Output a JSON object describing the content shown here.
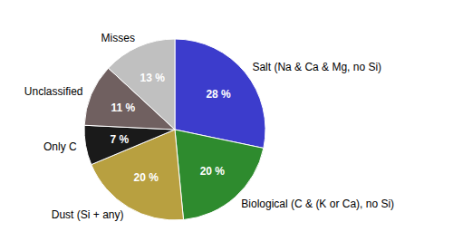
{
  "chart_data": {
    "type": "pie",
    "categories": [
      "Salt (Na & Ca & Mg, no Si)",
      "Biological (C & (K or Ca), no Si)",
      "Dust (Si + any)",
      "Only C",
      "Unclassified",
      "Misses"
    ],
    "values": [
      28,
      20,
      20,
      7,
      11,
      13
    ],
    "value_labels": [
      "28 %",
      "20 %",
      "20 %",
      "7 %",
      "11 %",
      "13 %"
    ],
    "colors": [
      "#3c3ccc",
      "#2e8b2e",
      "#b8a040",
      "#1a1a1a",
      "#706060",
      "#c0c0c0"
    ],
    "data_labels": true
  }
}
